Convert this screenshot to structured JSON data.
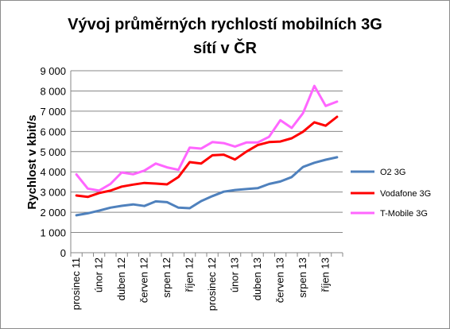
{
  "chart_data": {
    "type": "line",
    "title_line1": "Vývoj průměrných rychlostí mobilních 3G",
    "title_line2": "sítí v ČR",
    "ylabel": "Rychlost v kbit/s",
    "xlabel": "",
    "ylim": [
      0,
      9000
    ],
    "ytick_step": 1000,
    "y_tick_labels": [
      "0",
      "1 000",
      "2 000",
      "3 000",
      "4 000",
      "5 000",
      "6 000",
      "7 000",
      "8 000",
      "9 000"
    ],
    "grid": "horizontal",
    "legend_position": "right",
    "x": [
      "prosinec 11",
      "leden 12",
      "únor 12",
      "březen 12",
      "duben 12",
      "květen 12",
      "červen 12",
      "červenec 12",
      "srpen 12",
      "září 12",
      "říjen 12",
      "listopad 12",
      "prosinec 12",
      "leden 13",
      "únor 13",
      "březen 13",
      "duben 13",
      "květen 13",
      "červen 13",
      "červenec 13",
      "srpen 13",
      "září 13",
      "říjen 13",
      "listopad 13"
    ],
    "x_tick_labels_shown": [
      "prosinec 11",
      "",
      "únor 12",
      "",
      "duben 12",
      "",
      "červen 12",
      "",
      "srpen 12",
      "",
      "říjen 12",
      "",
      "prosinec 12",
      "",
      "únor 13",
      "",
      "duben 13",
      "",
      "červen 13",
      "",
      "srpen 13",
      "",
      "říjen 13",
      ""
    ],
    "series": [
      {
        "name": "O2 3G",
        "color": "#4f81bd",
        "values": [
          1850,
          1950,
          2080,
          2230,
          2320,
          2390,
          2310,
          2540,
          2500,
          2230,
          2200,
          2550,
          2800,
          3020,
          3100,
          3150,
          3190,
          3400,
          3520,
          3740,
          4240,
          4450,
          4600,
          4720
        ]
      },
      {
        "name": "Vodafone 3G",
        "color": "#ff0000",
        "values": [
          2830,
          2760,
          2950,
          3070,
          3270,
          3370,
          3450,
          3420,
          3380,
          3740,
          4480,
          4410,
          4820,
          4850,
          4610,
          5000,
          5320,
          5470,
          5500,
          5660,
          5980,
          6450,
          6280,
          6720
        ]
      },
      {
        "name": "T-Mobile 3G",
        "color": "#ff66ff",
        "values": [
          3870,
          3170,
          3070,
          3400,
          3970,
          3880,
          4060,
          4410,
          4220,
          4100,
          5200,
          5150,
          5470,
          5420,
          5250,
          5450,
          5450,
          5730,
          6550,
          6170,
          6900,
          8250,
          7260,
          7470
        ]
      }
    ]
  }
}
